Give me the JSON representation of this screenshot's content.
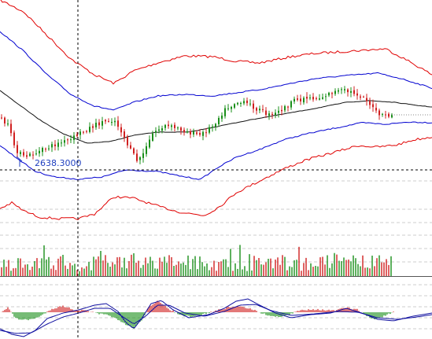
{
  "chart": {
    "price_label": "2638.3000",
    "colors": {
      "background": "#ffffff",
      "bull": "#1a8f1a",
      "bear": "#d02020",
      "outer_band": "#e00000",
      "inner_band": "#0000d0",
      "midline": "#111111",
      "signal": "#1010a0",
      "grid": "#999999",
      "crosshair": "#000000",
      "label": "#1f3fbf"
    },
    "panels": [
      "price",
      "volume",
      "macd"
    ]
  },
  "chart_data": {
    "type": "candlestick",
    "title": "",
    "series": [],
    "levels": [
      {
        "name": "crosshair-price",
        "value": 2638.3
      }
    ],
    "indicators": [
      "bollinger-bands-outer",
      "bollinger-bands-inner",
      "moving-average",
      "volume",
      "macd-histogram",
      "macd-signal"
    ],
    "grid": true
  }
}
